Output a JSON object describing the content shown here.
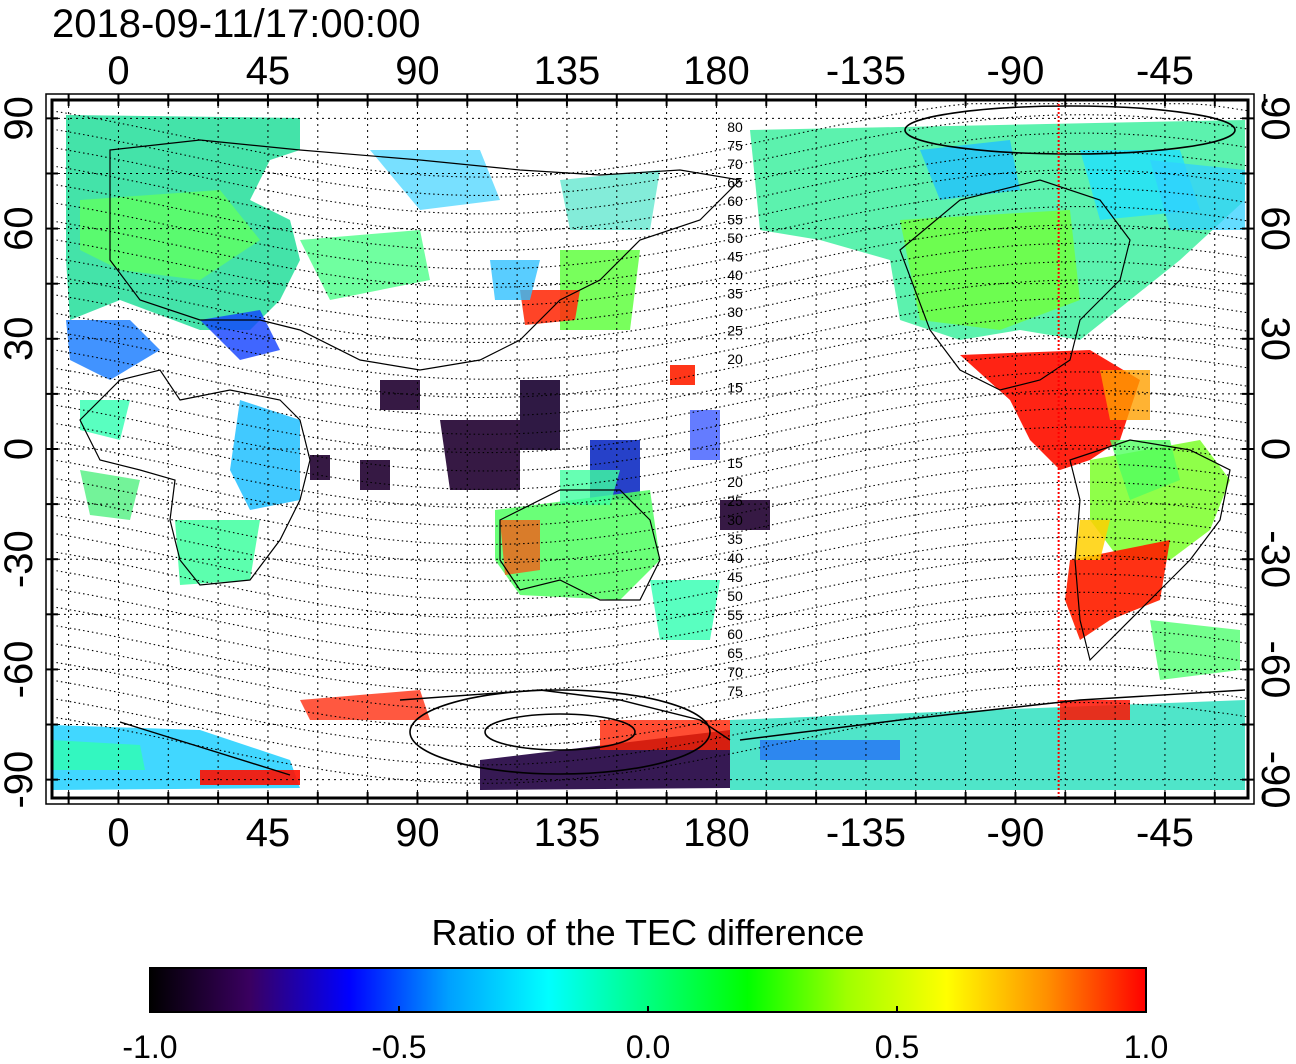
{
  "title": "2018-09-11/17:00:00",
  "colorbar": {
    "title": "Ratio of the TEC difference",
    "ticks": [
      "-1.0",
      "-0.5",
      "0.0",
      "0.5",
      "1.0"
    ],
    "range": [
      -1.0,
      1.0
    ],
    "colors": [
      "#000000",
      "#3a0060",
      "#0000ff",
      "#00a0ff",
      "#00ffff",
      "#00ff80",
      "#00ff00",
      "#a0ff00",
      "#ffff00",
      "#ff9000",
      "#ff0000"
    ]
  },
  "axes": {
    "x_top_labels": [
      "0",
      "45",
      "90",
      "135",
      "180",
      "-135",
      "-90",
      "-45"
    ],
    "x_bottom_labels": [
      "0",
      "45",
      "90",
      "135",
      "180",
      "-135",
      "-90",
      "-45"
    ],
    "y_left_labels": [
      "90",
      "60",
      "30",
      "0",
      "-30",
      "-60",
      "-90"
    ],
    "y_right_labels": [
      "90",
      "60",
      "30",
      "0",
      "-30",
      "-60",
      "-90"
    ],
    "x_range_lon_east": [
      -20,
      340
    ],
    "y_range_lat": [
      -95,
      95
    ],
    "grid": "dotted, every 15 degrees"
  },
  "contour_labels": {
    "north": [
      "80",
      "75",
      "70",
      "65",
      "60",
      "55",
      "50",
      "45",
      "40",
      "35",
      "30",
      "25",
      "20",
      "15"
    ],
    "south": [
      "15",
      "20",
      "25",
      "30",
      "35",
      "40",
      "45",
      "50",
      "55",
      "60",
      "65",
      "70",
      "75"
    ]
  },
  "marker": {
    "longitude": -77,
    "color": "#ff0000",
    "style": "dotted vertical line"
  }
}
